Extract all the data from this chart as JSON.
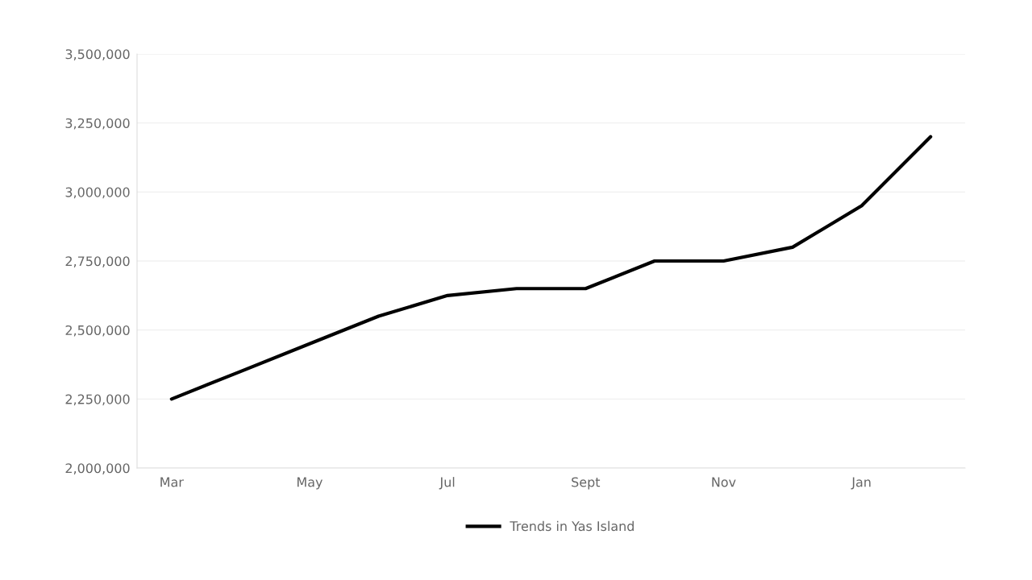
{
  "chart_data": {
    "type": "line",
    "categories": [
      "Mar",
      null,
      "May",
      null,
      "Jul",
      null,
      "Sept",
      null,
      "Nov",
      null,
      "Jan",
      null
    ],
    "series": [
      {
        "name": "Trends in Yas Island",
        "color": "#000000",
        "values": [
          2250000,
          2350000,
          2450000,
          2550000,
          2625000,
          2650000,
          2650000,
          2750000,
          2750000,
          2800000,
          2950000,
          3200000
        ]
      }
    ],
    "ylim": [
      2000000,
      3500000
    ],
    "yticks": [
      {
        "value": 2000000,
        "label": "2,000,000"
      },
      {
        "value": 2250000,
        "label": "2,250,000"
      },
      {
        "value": 2500000,
        "label": "2,500,000"
      },
      {
        "value": 2750000,
        "label": "2,750,000"
      },
      {
        "value": 3000000,
        "label": "3,000,000"
      },
      {
        "value": 3250000,
        "label": "3,250,000"
      },
      {
        "value": 3500000,
        "label": "3,500,000"
      }
    ],
    "grid": "y",
    "legend": "bottom",
    "marker": "none",
    "line_style": "solid"
  }
}
